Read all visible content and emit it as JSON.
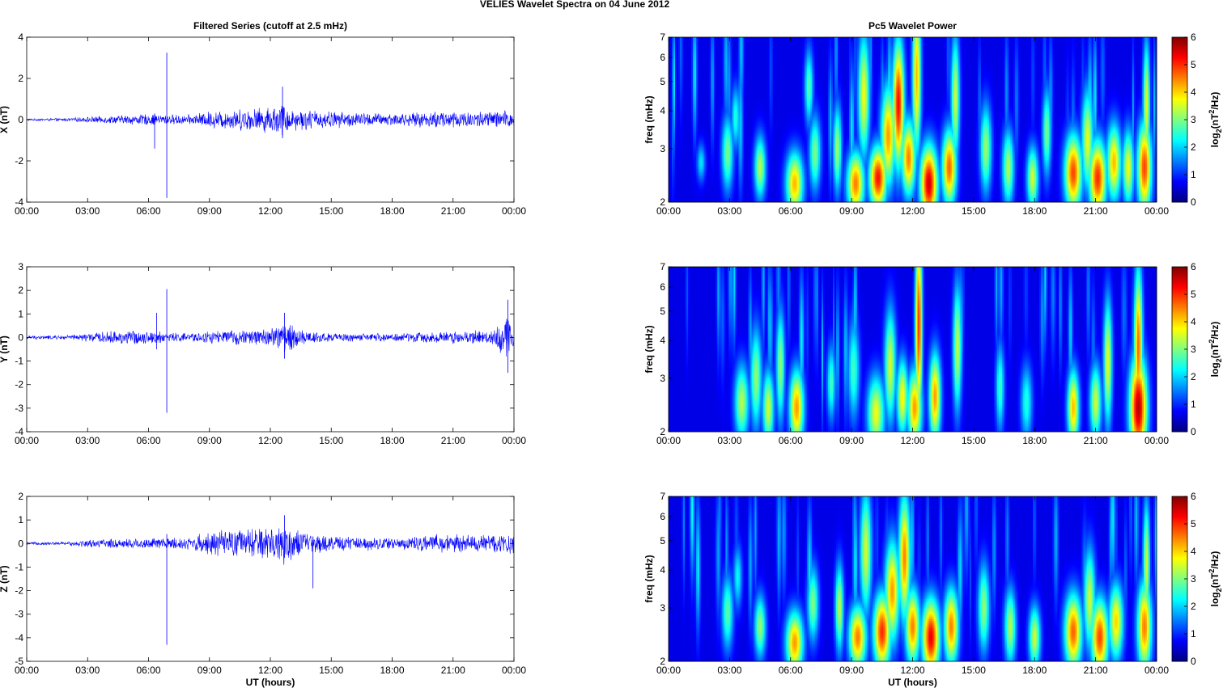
{
  "figure": {
    "title": "VELIES Wavelet Spectra on 04 June      2012"
  },
  "chart_data": [
    {
      "type": "line",
      "panel": "X-filtered",
      "title": "Filtered Series (cutoff at 2.5 mHz)",
      "xlabel": "",
      "ylabel": "X (nT)",
      "xlim": [
        "00:00",
        "24:00"
      ],
      "ylim": [
        -4,
        4
      ],
      "xticks": [
        "00:00",
        "03:00",
        "06:00",
        "09:00",
        "12:00",
        "15:00",
        "18:00",
        "21:00",
        "00:00"
      ],
      "yticks": [
        "-4",
        "-2",
        "0",
        "2",
        "4"
      ],
      "line_color": "#0000ff",
      "envelope_hours": [
        0,
        2,
        3,
        5,
        6,
        8,
        9,
        11,
        12,
        12.6,
        13,
        15,
        17,
        19,
        20.5,
        22,
        24
      ],
      "envelope_nT": [
        0.05,
        0.08,
        0.15,
        0.25,
        0.3,
        0.25,
        0.45,
        0.6,
        0.7,
        0.9,
        0.6,
        0.45,
        0.35,
        0.35,
        0.5,
        0.45,
        0.5
      ],
      "spikes": [
        {
          "hour": 6.9,
          "min": -3.8,
          "max": 3.25
        },
        {
          "hour": 6.3,
          "min": -1.4,
          "max": 0.3
        },
        {
          "hour": 12.6,
          "min": -0.9,
          "max": 1.6
        }
      ]
    },
    {
      "type": "line",
      "panel": "Y-filtered",
      "title": "",
      "xlabel": "",
      "ylabel": "Y (nT)",
      "xlim": [
        "00:00",
        "24:00"
      ],
      "ylim": [
        -4,
        3
      ],
      "xticks": [
        "00:00",
        "03:00",
        "06:00",
        "09:00",
        "12:00",
        "15:00",
        "18:00",
        "21:00",
        "00:00"
      ],
      "yticks": [
        "-4",
        "-3",
        "-2",
        "-1",
        "0",
        "1",
        "2",
        "3"
      ],
      "line_color": "#0000ff",
      "envelope_hours": [
        0,
        2,
        3,
        5,
        6,
        8,
        9,
        11,
        12,
        12.7,
        13.5,
        15,
        17,
        19,
        21,
        23,
        23.7,
        24
      ],
      "envelope_nT": [
        0.08,
        0.1,
        0.2,
        0.35,
        0.3,
        0.2,
        0.3,
        0.35,
        0.45,
        0.8,
        0.35,
        0.2,
        0.18,
        0.22,
        0.3,
        0.35,
        1.2,
        0.5
      ],
      "spikes": [
        {
          "hour": 6.9,
          "min": -3.2,
          "max": 2.05
        },
        {
          "hour": 6.4,
          "min": -0.5,
          "max": 1.05
        },
        {
          "hour": 12.7,
          "min": -0.9,
          "max": 1.05
        },
        {
          "hour": 23.7,
          "min": -1.5,
          "max": 1.6
        }
      ]
    },
    {
      "type": "line",
      "panel": "Z-filtered",
      "title": "",
      "xlabel": "UT (hours)",
      "ylabel": "Z (nT)",
      "xlim": [
        "00:00",
        "24:00"
      ],
      "ylim": [
        -5,
        2
      ],
      "xticks": [
        "00:00",
        "03:00",
        "06:00",
        "09:00",
        "12:00",
        "15:00",
        "18:00",
        "21:00",
        "00:00"
      ],
      "yticks": [
        "-5",
        "-4",
        "-3",
        "-2",
        "-1",
        "0",
        "1",
        "2"
      ],
      "line_color": "#0000ff",
      "envelope_hours": [
        0,
        2,
        3,
        5,
        6,
        8,
        9,
        11,
        12,
        12.7,
        13.5,
        15,
        17,
        19,
        20.5,
        22,
        24
      ],
      "envelope_nT": [
        0.06,
        0.08,
        0.18,
        0.25,
        0.25,
        0.3,
        0.55,
        0.7,
        0.8,
        1.0,
        0.55,
        0.35,
        0.3,
        0.3,
        0.45,
        0.4,
        0.5
      ],
      "spikes": [
        {
          "hour": 6.9,
          "min": -4.3,
          "max": 0.4
        },
        {
          "hour": 14.1,
          "min": -1.9,
          "max": 0.3
        },
        {
          "hour": 12.7,
          "min": -0.6,
          "max": 1.2
        }
      ]
    },
    {
      "type": "heatmap",
      "panel": "X-wavelet",
      "title": "Pc5 Wavelet Power",
      "xlabel": "",
      "ylabel": "freq (mHz)",
      "colorbar_label": "log2(nT^2/Hz)",
      "colormap": "jet",
      "xlim": [
        "00:00",
        "24:00"
      ],
      "ylim_mHz": [
        2,
        7
      ],
      "yscale": "log",
      "clim": [
        0,
        6
      ],
      "xticks": [
        "00:00",
        "03:00",
        "06:00",
        "09:00",
        "12:00",
        "15:00",
        "18:00",
        "21:00",
        "00:00"
      ],
      "yticks": [
        "2",
        "3",
        "4",
        "5",
        "6",
        "7"
      ],
      "cticks": [
        "0",
        "1",
        "2",
        "3",
        "4",
        "5",
        "6"
      ],
      "blobs": [
        {
          "hour": 1.6,
          "f": 2.7,
          "power": 1.8,
          "dt": 0.15,
          "dlogf": 0.06
        },
        {
          "hour": 2.9,
          "f": 2.9,
          "power": 2.8,
          "dt": 0.2,
          "dlogf": 0.12
        },
        {
          "hour": 3.3,
          "f": 3.8,
          "power": 2.2,
          "dt": 0.15,
          "dlogf": 0.1
        },
        {
          "hour": 4.5,
          "f": 2.6,
          "power": 3.2,
          "dt": 0.2,
          "dlogf": 0.1
        },
        {
          "hour": 6.2,
          "f": 2.3,
          "power": 4.2,
          "dt": 0.3,
          "dlogf": 0.1
        },
        {
          "hour": 6.9,
          "f": 4.8,
          "power": 2.6,
          "dt": 0.15,
          "dlogf": 0.12
        },
        {
          "hour": 7.2,
          "f": 2.9,
          "power": 2.8,
          "dt": 0.2,
          "dlogf": 0.12
        },
        {
          "hour": 8.3,
          "f": 3.0,
          "power": 3.0,
          "dt": 0.15,
          "dlogf": 0.14
        },
        {
          "hour": 9.2,
          "f": 2.3,
          "power": 4.6,
          "dt": 0.3,
          "dlogf": 0.1
        },
        {
          "hour": 9.6,
          "f": 4.5,
          "power": 3.6,
          "dt": 0.2,
          "dlogf": 0.2
        },
        {
          "hour": 10.3,
          "f": 2.4,
          "power": 5.4,
          "dt": 0.3,
          "dlogf": 0.1
        },
        {
          "hour": 10.8,
          "f": 3.3,
          "power": 4.4,
          "dt": 0.25,
          "dlogf": 0.16
        },
        {
          "hour": 11.3,
          "f": 4.2,
          "power": 5.5,
          "dt": 0.2,
          "dlogf": 0.2
        },
        {
          "hour": 11.8,
          "f": 2.8,
          "power": 4.6,
          "dt": 0.25,
          "dlogf": 0.12
        },
        {
          "hour": 12.2,
          "f": 5.2,
          "power": 4.2,
          "dt": 0.15,
          "dlogf": 0.25
        },
        {
          "hour": 12.8,
          "f": 2.3,
          "power": 5.8,
          "dt": 0.3,
          "dlogf": 0.12
        },
        {
          "hour": 13.8,
          "f": 2.6,
          "power": 4.8,
          "dt": 0.25,
          "dlogf": 0.12
        },
        {
          "hour": 14.1,
          "f": 4.4,
          "power": 3.4,
          "dt": 0.15,
          "dlogf": 0.2
        },
        {
          "hour": 15.6,
          "f": 3.0,
          "power": 3.0,
          "dt": 0.2,
          "dlogf": 0.14
        },
        {
          "hour": 16.7,
          "f": 2.6,
          "power": 3.2,
          "dt": 0.2,
          "dlogf": 0.12
        },
        {
          "hour": 17.9,
          "f": 2.4,
          "power": 3.4,
          "dt": 0.2,
          "dlogf": 0.1
        },
        {
          "hour": 18.6,
          "f": 3.4,
          "power": 2.8,
          "dt": 0.15,
          "dlogf": 0.14
        },
        {
          "hour": 19.9,
          "f": 2.5,
          "power": 5.0,
          "dt": 0.3,
          "dlogf": 0.12
        },
        {
          "hour": 20.6,
          "f": 3.2,
          "power": 3.6,
          "dt": 0.2,
          "dlogf": 0.16
        },
        {
          "hour": 21.1,
          "f": 2.4,
          "power": 5.2,
          "dt": 0.3,
          "dlogf": 0.12
        },
        {
          "hour": 21.9,
          "f": 2.7,
          "power": 4.2,
          "dt": 0.25,
          "dlogf": 0.12
        },
        {
          "hour": 22.6,
          "f": 2.6,
          "power": 3.6,
          "dt": 0.2,
          "dlogf": 0.12
        },
        {
          "hour": 23.4,
          "f": 2.6,
          "power": 5.0,
          "dt": 0.25,
          "dlogf": 0.14
        },
        {
          "hour": 23.5,
          "f": 4.2,
          "power": 3.6,
          "dt": 0.12,
          "dlogf": 0.2
        }
      ]
    },
    {
      "type": "heatmap",
      "panel": "Y-wavelet",
      "title": "",
      "xlabel": "",
      "ylabel": "freq (mHz)",
      "colorbar_label": "log2(nT^2/Hz)",
      "colormap": "jet",
      "xlim": [
        "00:00",
        "24:00"
      ],
      "ylim_mHz": [
        2,
        7
      ],
      "yscale": "log",
      "clim": [
        0,
        6
      ],
      "xticks": [
        "00:00",
        "03:00",
        "06:00",
        "09:00",
        "12:00",
        "15:00",
        "18:00",
        "21:00",
        "00:00"
      ],
      "yticks": [
        "2",
        "3",
        "4",
        "5",
        "6",
        "7"
      ],
      "cticks": [
        "0",
        "1",
        "2",
        "3",
        "4",
        "5",
        "6"
      ],
      "blobs": [
        {
          "hour": 3.6,
          "f": 2.5,
          "power": 3.2,
          "dt": 0.25,
          "dlogf": 0.12
        },
        {
          "hour": 4.3,
          "f": 3.0,
          "power": 3.0,
          "dt": 0.2,
          "dlogf": 0.16
        },
        {
          "hour": 4.9,
          "f": 2.4,
          "power": 3.4,
          "dt": 0.2,
          "dlogf": 0.12
        },
        {
          "hour": 5.5,
          "f": 3.3,
          "power": 3.0,
          "dt": 0.15,
          "dlogf": 0.18
        },
        {
          "hour": 6.3,
          "f": 2.4,
          "power": 4.4,
          "dt": 0.25,
          "dlogf": 0.12
        },
        {
          "hour": 8.0,
          "f": 2.9,
          "power": 2.4,
          "dt": 0.15,
          "dlogf": 0.12
        },
        {
          "hour": 9.1,
          "f": 3.2,
          "power": 2.4,
          "dt": 0.2,
          "dlogf": 0.16
        },
        {
          "hour": 10.2,
          "f": 2.3,
          "power": 3.6,
          "dt": 0.3,
          "dlogf": 0.12
        },
        {
          "hour": 10.9,
          "f": 3.3,
          "power": 3.4,
          "dt": 0.2,
          "dlogf": 0.18
        },
        {
          "hour": 11.5,
          "f": 2.6,
          "power": 3.8,
          "dt": 0.2,
          "dlogf": 0.12
        },
        {
          "hour": 12.3,
          "f": 4.5,
          "power": 5.2,
          "dt": 0.12,
          "dlogf": 0.3
        },
        {
          "hour": 12.1,
          "f": 2.4,
          "power": 4.4,
          "dt": 0.25,
          "dlogf": 0.12
        },
        {
          "hour": 13.1,
          "f": 2.6,
          "power": 4.4,
          "dt": 0.2,
          "dlogf": 0.14
        },
        {
          "hour": 14.2,
          "f": 3.8,
          "power": 3.4,
          "dt": 0.15,
          "dlogf": 0.2
        },
        {
          "hour": 16.3,
          "f": 2.8,
          "power": 2.4,
          "dt": 0.15,
          "dlogf": 0.14
        },
        {
          "hour": 17.6,
          "f": 2.5,
          "power": 2.2,
          "dt": 0.2,
          "dlogf": 0.12
        },
        {
          "hour": 19.9,
          "f": 2.4,
          "power": 4.2,
          "dt": 0.2,
          "dlogf": 0.12
        },
        {
          "hour": 21.0,
          "f": 2.5,
          "power": 3.4,
          "dt": 0.2,
          "dlogf": 0.12
        },
        {
          "hour": 21.6,
          "f": 3.4,
          "power": 3.6,
          "dt": 0.15,
          "dlogf": 0.2
        },
        {
          "hour": 23.1,
          "f": 2.4,
          "power": 6.0,
          "dt": 0.3,
          "dlogf": 0.16
        },
        {
          "hour": 23.1,
          "f": 3.8,
          "power": 4.8,
          "dt": 0.15,
          "dlogf": 0.25
        }
      ]
    },
    {
      "type": "heatmap",
      "panel": "Z-wavelet",
      "title": "",
      "xlabel": "UT (hours)",
      "ylabel": "freq (mHz)",
      "colorbar_label": "log2(nT^2/Hz)",
      "colormap": "jet",
      "xlim": [
        "00:00",
        "24:00"
      ],
      "ylim_mHz": [
        2,
        7
      ],
      "yscale": "log",
      "clim": [
        0,
        6
      ],
      "xticks": [
        "00:00",
        "03:00",
        "06:00",
        "09:00",
        "12:00",
        "15:00",
        "18:00",
        "21:00",
        "00:00"
      ],
      "yticks": [
        "2",
        "3",
        "4",
        "5",
        "6",
        "7"
      ],
      "cticks": [
        "0",
        "1",
        "2",
        "3",
        "4",
        "5",
        "6"
      ],
      "blobs": [
        {
          "hour": 2.9,
          "f": 2.9,
          "power": 2.6,
          "dt": 0.2,
          "dlogf": 0.12
        },
        {
          "hour": 3.4,
          "f": 3.8,
          "power": 2.0,
          "dt": 0.15,
          "dlogf": 0.1
        },
        {
          "hour": 4.5,
          "f": 2.6,
          "power": 3.0,
          "dt": 0.2,
          "dlogf": 0.1
        },
        {
          "hour": 6.2,
          "f": 2.3,
          "power": 4.4,
          "dt": 0.3,
          "dlogf": 0.1
        },
        {
          "hour": 7.1,
          "f": 3.1,
          "power": 2.8,
          "dt": 0.2,
          "dlogf": 0.12
        },
        {
          "hour": 8.4,
          "f": 3.0,
          "power": 3.2,
          "dt": 0.15,
          "dlogf": 0.14
        },
        {
          "hour": 9.3,
          "f": 2.4,
          "power": 4.6,
          "dt": 0.3,
          "dlogf": 0.1
        },
        {
          "hour": 9.7,
          "f": 4.6,
          "power": 3.4,
          "dt": 0.2,
          "dlogf": 0.2
        },
        {
          "hour": 10.5,
          "f": 2.5,
          "power": 5.2,
          "dt": 0.3,
          "dlogf": 0.12
        },
        {
          "hour": 11.0,
          "f": 3.4,
          "power": 4.4,
          "dt": 0.25,
          "dlogf": 0.16
        },
        {
          "hour": 11.6,
          "f": 4.4,
          "power": 4.6,
          "dt": 0.2,
          "dlogf": 0.2
        },
        {
          "hour": 12.0,
          "f": 2.6,
          "power": 4.6,
          "dt": 0.25,
          "dlogf": 0.12
        },
        {
          "hour": 12.9,
          "f": 2.4,
          "power": 5.6,
          "dt": 0.3,
          "dlogf": 0.12
        },
        {
          "hour": 13.9,
          "f": 2.6,
          "power": 4.6,
          "dt": 0.25,
          "dlogf": 0.12
        },
        {
          "hour": 15.5,
          "f": 3.0,
          "power": 3.0,
          "dt": 0.2,
          "dlogf": 0.14
        },
        {
          "hour": 16.8,
          "f": 2.6,
          "power": 3.2,
          "dt": 0.2,
          "dlogf": 0.12
        },
        {
          "hour": 18.0,
          "f": 2.4,
          "power": 3.4,
          "dt": 0.2,
          "dlogf": 0.1
        },
        {
          "hour": 19.9,
          "f": 2.5,
          "power": 4.8,
          "dt": 0.3,
          "dlogf": 0.12
        },
        {
          "hour": 20.7,
          "f": 3.2,
          "power": 3.4,
          "dt": 0.2,
          "dlogf": 0.16
        },
        {
          "hour": 21.2,
          "f": 2.4,
          "power": 5.0,
          "dt": 0.3,
          "dlogf": 0.12
        },
        {
          "hour": 22.0,
          "f": 2.7,
          "power": 4.0,
          "dt": 0.25,
          "dlogf": 0.12
        },
        {
          "hour": 23.4,
          "f": 2.6,
          "power": 4.6,
          "dt": 0.25,
          "dlogf": 0.14
        },
        {
          "hour": 23.5,
          "f": 4.2,
          "power": 3.4,
          "dt": 0.12,
          "dlogf": 0.2
        }
      ]
    }
  ]
}
